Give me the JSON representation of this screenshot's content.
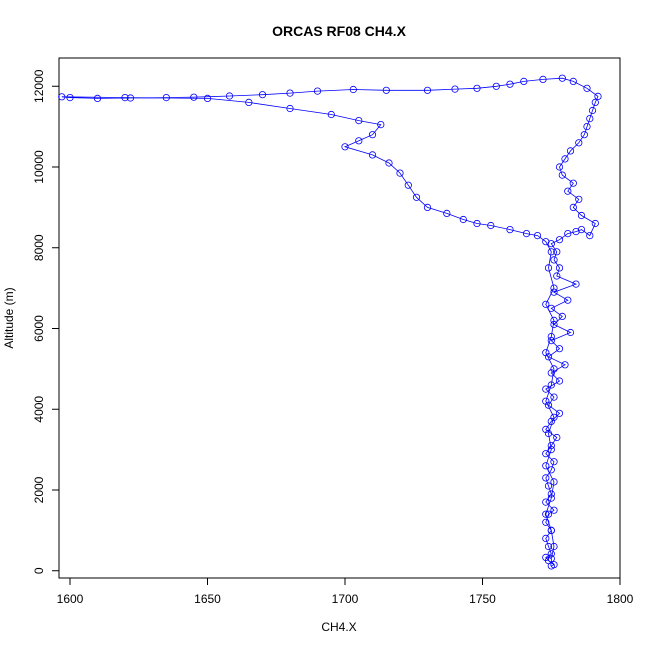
{
  "chart_data": {
    "type": "scatter",
    "title": "ORCAS RF08 CH4.X",
    "xlabel": "CH4.X",
    "ylabel": "Altitude (m)",
    "xlim": [
      1596,
      1800
    ],
    "ylim": [
      -180,
      12700
    ],
    "x_ticks": [
      1600,
      1650,
      1700,
      1750,
      1800
    ],
    "y_ticks": [
      0,
      2000,
      4000,
      6000,
      8000,
      10000,
      12000
    ],
    "marker": "open-circle",
    "connect_points": true,
    "grid": false,
    "series_color": "#0000ff",
    "series": [
      {
        "values": [
          [
            1775,
            120
          ],
          [
            1776,
            150
          ],
          [
            1774,
            250
          ],
          [
            1773,
            330
          ],
          [
            1775,
            420
          ],
          [
            1774,
            600
          ],
          [
            1773,
            800
          ],
          [
            1775,
            1000
          ],
          [
            1773,
            1200
          ],
          [
            1774,
            1400
          ],
          [
            1776,
            1500
          ],
          [
            1773,
            1700
          ],
          [
            1775,
            1900
          ],
          [
            1774,
            2100
          ],
          [
            1773,
            2300
          ],
          [
            1775,
            2500
          ],
          [
            1776,
            2700
          ],
          [
            1773,
            2900
          ],
          [
            1775,
            3100
          ],
          [
            1777,
            3300
          ],
          [
            1773,
            3500
          ],
          [
            1775,
            3700
          ],
          [
            1778,
            3900
          ],
          [
            1774,
            4100
          ],
          [
            1776,
            4300
          ],
          [
            1773,
            4500
          ],
          [
            1778,
            4700
          ],
          [
            1775,
            4900
          ],
          [
            1780,
            5100
          ],
          [
            1774,
            5300
          ],
          [
            1778,
            5500
          ],
          [
            1775,
            5700
          ],
          [
            1782,
            5900
          ],
          [
            1776,
            6100
          ],
          [
            1779,
            6300
          ],
          [
            1775,
            6500
          ],
          [
            1781,
            6700
          ],
          [
            1776,
            6900
          ],
          [
            1784,
            7100
          ],
          [
            1777,
            7300
          ],
          [
            1778,
            7500
          ],
          [
            1776,
            7700
          ],
          [
            1777,
            7900
          ],
          [
            1775,
            8100
          ],
          [
            1778,
            8200
          ],
          [
            1781,
            8350
          ],
          [
            1784,
            8400
          ],
          [
            1786,
            8450
          ],
          [
            1789,
            8300
          ],
          [
            1791,
            8600
          ],
          [
            1786,
            8800
          ],
          [
            1783,
            9000
          ],
          [
            1785,
            9200
          ],
          [
            1781,
            9400
          ],
          [
            1783,
            9600
          ],
          [
            1779,
            9800
          ],
          [
            1778,
            10000
          ],
          [
            1780,
            10200
          ],
          [
            1782,
            10400
          ],
          [
            1785,
            10600
          ],
          [
            1787,
            10800
          ],
          [
            1788,
            11000
          ],
          [
            1789,
            11200
          ],
          [
            1790,
            11400
          ],
          [
            1791,
            11600
          ],
          [
            1792,
            11750
          ],
          [
            1788,
            11950
          ],
          [
            1783,
            12120
          ],
          [
            1779,
            12200
          ],
          [
            1772,
            12170
          ],
          [
            1765,
            12120
          ],
          [
            1760,
            12050
          ],
          [
            1755,
            12000
          ],
          [
            1748,
            11950
          ],
          [
            1740,
            11930
          ],
          [
            1730,
            11900
          ],
          [
            1715,
            11900
          ],
          [
            1703,
            11920
          ],
          [
            1690,
            11880
          ],
          [
            1680,
            11830
          ],
          [
            1670,
            11790
          ],
          [
            1658,
            11760
          ],
          [
            1645,
            11730
          ],
          [
            1635,
            11720
          ],
          [
            1622,
            11710
          ],
          [
            1610,
            11700
          ],
          [
            1600,
            11720
          ],
          [
            1597,
            11740
          ],
          [
            1620,
            11720
          ],
          [
            1650,
            11700
          ],
          [
            1665,
            11600
          ],
          [
            1680,
            11450
          ],
          [
            1695,
            11300
          ],
          [
            1705,
            11150
          ],
          [
            1713,
            11050
          ],
          [
            1710,
            10800
          ],
          [
            1705,
            10650
          ],
          [
            1700,
            10500
          ],
          [
            1710,
            10300
          ],
          [
            1716,
            10100
          ],
          [
            1720,
            9850
          ],
          [
            1723,
            9550
          ],
          [
            1726,
            9250
          ],
          [
            1730,
            9000
          ],
          [
            1737,
            8850
          ],
          [
            1743,
            8700
          ],
          [
            1748,
            8600
          ],
          [
            1753,
            8550
          ],
          [
            1760,
            8450
          ],
          [
            1766,
            8350
          ],
          [
            1770,
            8300
          ],
          [
            1773,
            8150
          ],
          [
            1775,
            7900
          ],
          [
            1774,
            7500
          ],
          [
            1776,
            7000
          ],
          [
            1773,
            6600
          ],
          [
            1776,
            6200
          ],
          [
            1775,
            5800
          ],
          [
            1773,
            5400
          ],
          [
            1776,
            5000
          ],
          [
            1775,
            4600
          ],
          [
            1773,
            4200
          ],
          [
            1776,
            3800
          ],
          [
            1774,
            3400
          ],
          [
            1775,
            3000
          ],
          [
            1773,
            2600
          ],
          [
            1776,
            2200
          ],
          [
            1775,
            1800
          ],
          [
            1773,
            1400
          ],
          [
            1775,
            1000
          ],
          [
            1776,
            600
          ],
          [
            1775,
            300
          ]
        ]
      }
    ]
  }
}
